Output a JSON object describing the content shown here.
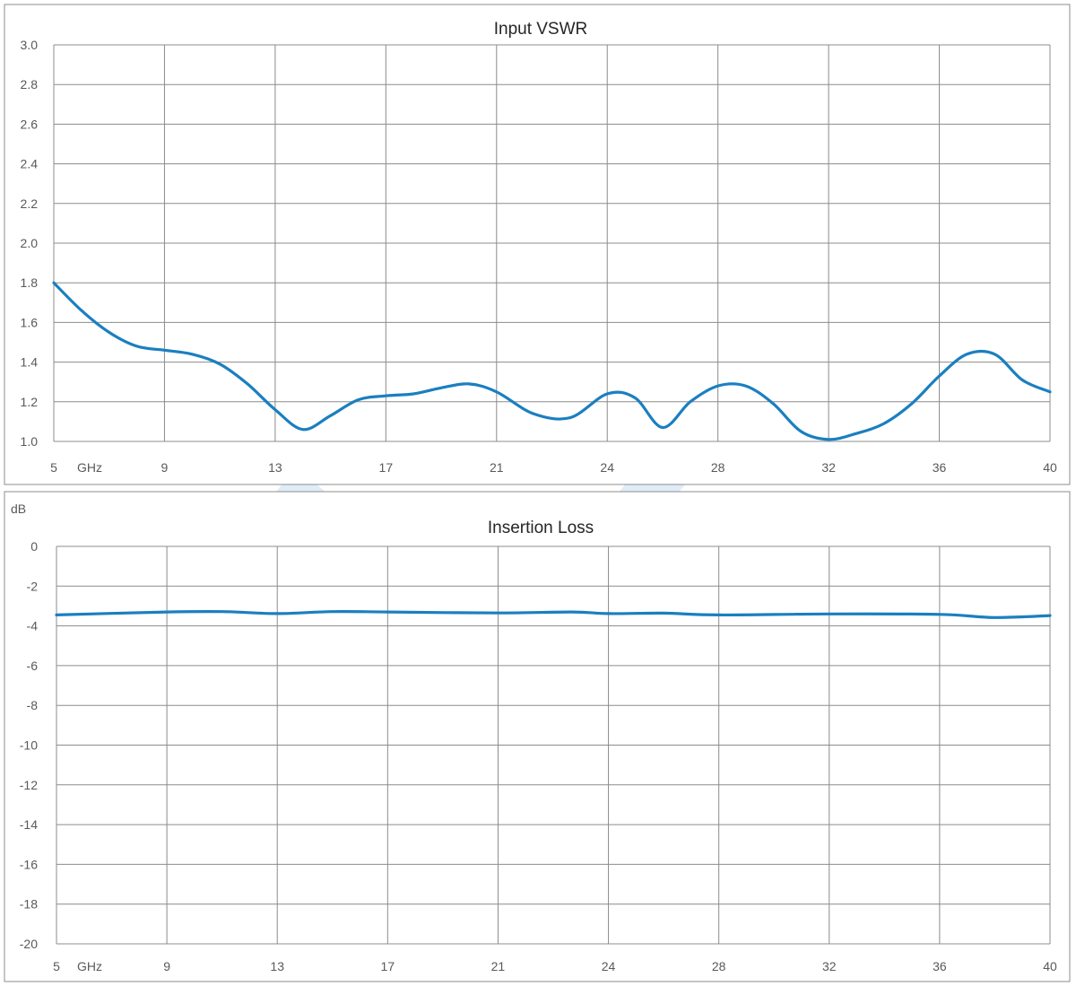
{
  "colors": {
    "series": "#1a7fc0",
    "watermark": "#dbe9f6",
    "grid": "#8c8c8c"
  },
  "chart_data": [
    {
      "type": "line",
      "title": "Input VSWR",
      "ylabel": "",
      "x_ticks": [
        "5",
        "9",
        "13",
        "17",
        "21",
        "24",
        "28",
        "32",
        "36",
        "40"
      ],
      "x_unit_label": "GHz",
      "y_ticks": [
        "3.0",
        "2.8",
        "2.6",
        "2.4",
        "2.2",
        "2.0",
        "1.8",
        "1.6",
        "1.4",
        "1.2",
        "1.0"
      ],
      "ylim": [
        1.0,
        3.0
      ],
      "grid": true,
      "series": [
        {
          "x": [
            5,
            6,
            7,
            8,
            9,
            10,
            11,
            12,
            13,
            14,
            15,
            16,
            17,
            18,
            19,
            20,
            21,
            22,
            23,
            24,
            25,
            26,
            27,
            28,
            29,
            30,
            31,
            32,
            33,
            34,
            35,
            36,
            37,
            38,
            39,
            40
          ],
          "values": [
            1.8,
            1.66,
            1.55,
            1.48,
            1.46,
            1.44,
            1.39,
            1.29,
            1.16,
            1.06,
            1.13,
            1.21,
            1.23,
            1.24,
            1.27,
            1.29,
            1.25,
            1.14,
            1.12,
            1.24,
            1.22,
            1.07,
            1.2,
            1.28,
            1.28,
            1.19,
            1.05,
            1.01,
            1.04,
            1.09,
            1.19,
            1.33,
            1.44,
            1.44,
            1.31,
            1.25
          ]
        }
      ]
    },
    {
      "type": "line",
      "title": "Insertion Loss",
      "ylabel": "dB",
      "x_ticks": [
        "5",
        "9",
        "13",
        "17",
        "21",
        "24",
        "28",
        "32",
        "36",
        "40"
      ],
      "x_unit_label": "GHz",
      "y_ticks": [
        "0",
        "-2",
        "-4",
        "-6",
        "-8",
        "-10",
        "-12",
        "-14",
        "-16",
        "-18",
        "-20"
      ],
      "ylim": [
        -20,
        0
      ],
      "grid": true,
      "series": [
        {
          "x": [
            5,
            9,
            11,
            13,
            15,
            17,
            21,
            23,
            24,
            26,
            28,
            32,
            36,
            38,
            40
          ],
          "values": [
            -3.45,
            -3.3,
            -3.28,
            -3.38,
            -3.28,
            -3.3,
            -3.35,
            -3.3,
            -3.38,
            -3.36,
            -3.45,
            -3.4,
            -3.42,
            -3.58,
            -3.48
          ]
        }
      ]
    }
  ]
}
